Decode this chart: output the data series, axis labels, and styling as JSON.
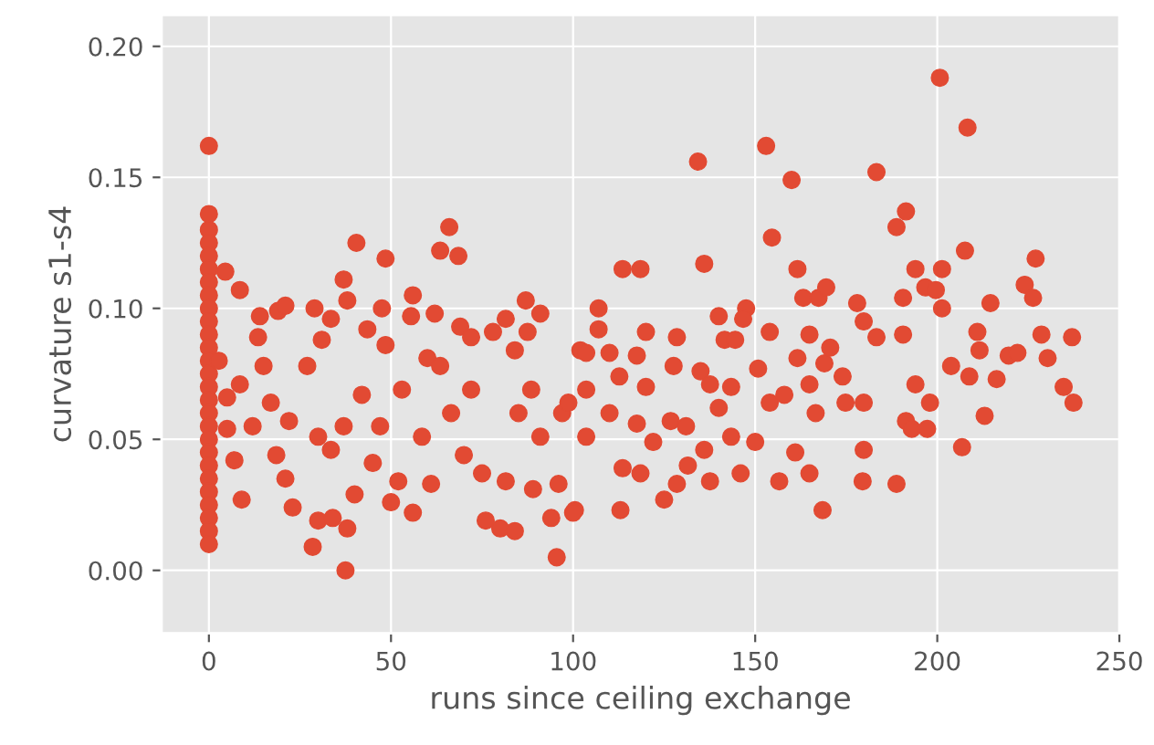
{
  "chart_data": {
    "type": "scatter",
    "xlabel": "runs since ceiling exchange",
    "ylabel": "curvature s1-s4",
    "xlim": [
      -13,
      250
    ],
    "ylim": [
      -0.024,
      0.212
    ],
    "xticks": [
      0,
      50,
      100,
      150,
      200,
      250
    ],
    "yticks": [
      {
        "value": 0,
        "label": "0.00"
      },
      {
        "value": 0.05,
        "label": "0.05"
      },
      {
        "value": 0.1,
        "label": "0.10"
      },
      {
        "value": 0.15,
        "label": "0.15"
      },
      {
        "value": 0.2,
        "label": "0.20"
      }
    ],
    "grid": true,
    "marker": "circle",
    "series": [
      {
        "color": "#e24a33",
        "x": [
          0,
          0,
          0,
          0,
          0,
          0,
          0,
          0,
          0,
          0,
          0,
          0,
          0,
          0,
          0,
          0,
          0,
          0,
          0,
          0,
          0,
          0,
          0,
          0,
          0,
          0,
          0,
          4.5,
          8.5,
          2.7,
          5,
          8.5,
          5,
          7,
          9,
          14,
          19,
          21,
          13.5,
          15,
          12,
          17,
          18.5,
          22,
          23,
          21,
          27,
          29,
          28.5,
          30,
          34,
          31,
          33.5,
          37,
          38,
          40.5,
          37.5,
          38,
          40,
          42,
          37,
          33.5,
          30,
          43.5,
          48.5,
          47.5,
          48.5,
          45,
          50,
          52,
          47,
          53,
          56,
          55.5,
          56,
          58.5,
          60,
          62,
          61,
          63.5,
          66,
          68.5,
          63.5,
          66.5,
          69,
          72,
          70,
          75,
          76,
          72,
          78,
          81.5,
          80,
          84,
          81.5,
          84,
          87,
          91,
          87.5,
          85,
          88.5,
          89,
          91,
          96,
          94,
          95.5,
          97,
          100.5,
          102,
          100,
          107,
          107,
          103.6,
          110,
          103.6,
          98.7,
          103.6,
          110,
          113.6,
          118.5,
          112.7,
          113,
          113.6,
          118.5,
          117.5,
          120,
          117.5,
          120,
          122,
          125,
          128.5,
          127.6,
          126.8,
          128.5,
          131.5,
          131,
          134.3,
          136,
          135,
          137.6,
          136,
          137.6,
          140,
          141.6,
          140,
          143.4,
          143.4,
          146,
          144.5,
          147.5,
          146.7,
          150,
          150.8,
          153,
          154.6,
          154,
          154,
          156.6,
          158,
          160,
          161.6,
          161,
          161.6,
          163.2,
          164.9,
          164.9,
          164.9,
          166.6,
          167.4,
          169.5,
          169,
          170.6,
          168.5,
          174,
          174.8,
          178,
          179.8,
          179.8,
          179.8,
          179.5,
          183.3,
          183.3,
          188.8,
          191.4,
          188.8,
          190.6,
          190.6,
          191.4,
          194,
          194,
          193,
          196.7,
          197.2,
          198,
          200.7,
          201.3,
          201.3,
          199.6,
          203.8,
          206.8,
          207.6,
          208.3,
          208.8,
          211,
          211.6,
          213,
          214.6,
          216.3,
          219.6,
          222,
          224,
          226.3,
          227,
          228.6,
          230.3,
          234.7,
          237,
          237.4
        ],
        "values": [
          0.162,
          0.136,
          0.13,
          0.125,
          0.12,
          0.115,
          0.11,
          0.105,
          0.1,
          0.095,
          0.09,
          0.085,
          0.08,
          0.075,
          0.07,
          0.065,
          0.06,
          0.055,
          0.05,
          0.045,
          0.04,
          0.035,
          0.03,
          0.025,
          0.02,
          0.015,
          0.01,
          0.114,
          0.107,
          0.08,
          0.066,
          0.071,
          0.054,
          0.042,
          0.027,
          0.097,
          0.099,
          0.101,
          0.089,
          0.078,
          0.055,
          0.064,
          0.044,
          0.057,
          0.024,
          0.035,
          0.078,
          0.1,
          0.009,
          0.019,
          0.02,
          0.088,
          0.096,
          0.111,
          0.103,
          0.125,
          0.0,
          0.016,
          0.029,
          0.067,
          0.055,
          0.046,
          0.051,
          0.092,
          0.119,
          0.1,
          0.086,
          0.041,
          0.026,
          0.034,
          0.055,
          0.069,
          0.105,
          0.097,
          0.022,
          0.051,
          0.081,
          0.098,
          0.033,
          0.122,
          0.131,
          0.12,
          0.078,
          0.06,
          0.093,
          0.089,
          0.044,
          0.037,
          0.019,
          0.069,
          0.091,
          0.096,
          0.016,
          0.015,
          0.034,
          0.084,
          0.103,
          0.098,
          0.091,
          0.06,
          0.069,
          0.031,
          0.051,
          0.033,
          0.02,
          0.005,
          0.06,
          0.023,
          0.084,
          0.022,
          0.1,
          0.092,
          0.083,
          0.083,
          0.069,
          0.064,
          0.051,
          0.06,
          0.115,
          0.115,
          0.074,
          0.023,
          0.039,
          0.037,
          0.056,
          0.091,
          0.082,
          0.07,
          0.049,
          0.027,
          0.089,
          0.078,
          0.057,
          0.033,
          0.04,
          0.055,
          0.156,
          0.117,
          0.076,
          0.071,
          0.046,
          0.034,
          0.097,
          0.088,
          0.062,
          0.051,
          0.07,
          0.037,
          0.088,
          0.1,
          0.096,
          0.049,
          0.077,
          0.162,
          0.127,
          0.091,
          0.064,
          0.034,
          0.067,
          0.149,
          0.115,
          0.045,
          0.081,
          0.104,
          0.09,
          0.071,
          0.037,
          0.06,
          0.104,
          0.108,
          0.079,
          0.085,
          0.023,
          0.074,
          0.064,
          0.102,
          0.095,
          0.064,
          0.046,
          0.034,
          0.152,
          0.089,
          0.131,
          0.137,
          0.033,
          0.104,
          0.09,
          0.057,
          0.115,
          0.071,
          0.054,
          0.108,
          0.054,
          0.064,
          0.188,
          0.115,
          0.1,
          0.107,
          0.078,
          0.047,
          0.122,
          0.169,
          0.074,
          0.091,
          0.084,
          0.059,
          0.102,
          0.073,
          0.082,
          0.083,
          0.109,
          0.104,
          0.119,
          0.09,
          0.081,
          0.07,
          0.089,
          0.064
        ]
      }
    ]
  }
}
